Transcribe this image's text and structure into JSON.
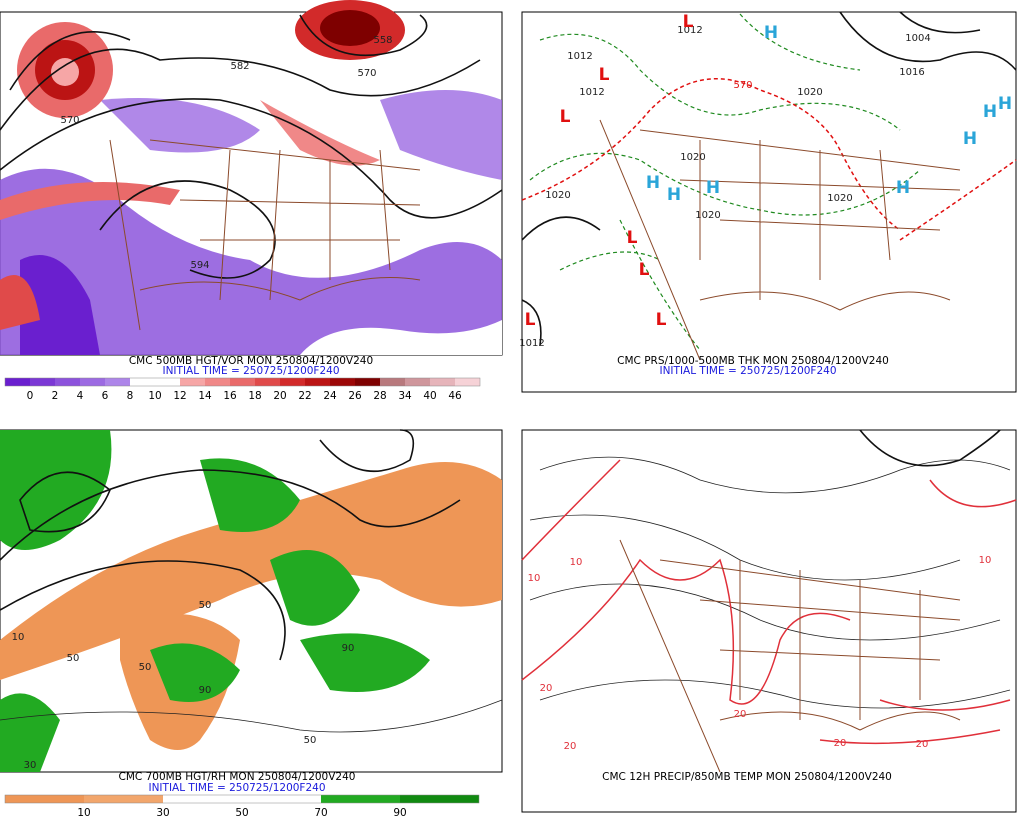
{
  "panels": [
    {
      "title": "CMC 500MB HGT/VOR MON 250804/1200V240",
      "initial_time": "INITIAL TIME = 250725/1200F240",
      "colorbar": {
        "labels": [
          "0",
          "2",
          "4",
          "6",
          "8",
          "10",
          "12",
          "14",
          "16",
          "18",
          "20",
          "22",
          "24",
          "26",
          "28",
          "34",
          "40",
          "46"
        ],
        "colors": [
          "#6a1fcf",
          "#7b38d5",
          "#8c52dc",
          "#9c6ae2",
          "#ad85e9",
          "#ffffff",
          "#ffffff",
          "#f6a6a6",
          "#f08888",
          "#e96a6a",
          "#e04a4a",
          "#d22a2a",
          "#bb1414",
          "#9c0606",
          "#7e0000",
          "#b8797d",
          "#cf969c",
          "#e6b4ba",
          "#f6d2d7"
        ]
      },
      "map_labels": [
        "582",
        "570",
        "570",
        "594",
        "558"
      ]
    },
    {
      "title": "CMC PRS/1000-500MB THK MON 250804/1200V240",
      "initial_time": "INITIAL TIME = 250725/1200F240",
      "map_labels": [
        "1012",
        "1012",
        "1020",
        "1020",
        "1020",
        "1020",
        "1020",
        "1004",
        "1012",
        "1012",
        "1016",
        "570"
      ],
      "highs": [
        "H",
        "H",
        "H",
        "H",
        "H",
        "H",
        "H",
        "H"
      ],
      "lows": [
        "L",
        "L",
        "L",
        "L",
        "L",
        "L",
        "L"
      ]
    },
    {
      "title": "CMC 700MB HGT/RH MON 250804/1200V240",
      "initial_time": "INITIAL TIME = 250725/1200F240",
      "colorbar": {
        "labels": [
          "10",
          "30",
          "50",
          "70",
          "90"
        ],
        "colors": [
          "#ee9656",
          "#f2a66c",
          "#ffffff",
          "#ffffff",
          "#22aa22",
          "#118a11"
        ]
      },
      "map_labels": [
        "10",
        "50",
        "50",
        "90",
        "50",
        "30",
        "50",
        "90"
      ]
    },
    {
      "title": "CMC 12H PRECIP/850MB TEMP MON 250804/1200V240",
      "map_labels": [
        "10",
        "10",
        "20",
        "20",
        "20",
        "20",
        "20",
        "10"
      ]
    }
  ]
}
